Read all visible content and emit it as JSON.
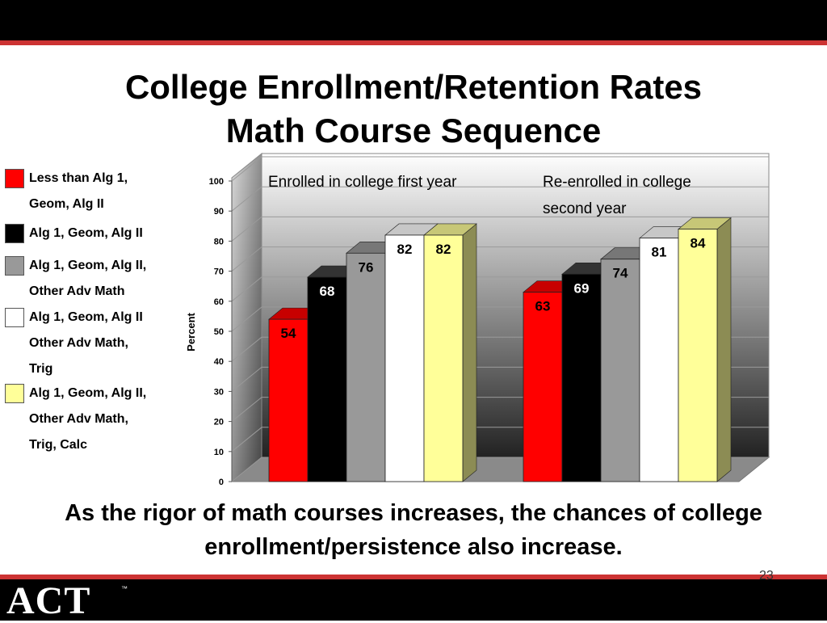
{
  "title_line1": "College Enrollment/Retention Rates",
  "title_line2": "Math Course Sequence",
  "caption": "As the rigor of math courses increases, the chances of college enrollment/persistence also increase.",
  "page_number": "23",
  "logo_text": "ACT",
  "logo_tm": "™",
  "legend": [
    {
      "label": "Less than Alg 1,\nGeom, Alg II",
      "color": "#ff0000"
    },
    {
      "label": "Alg 1, Geom, Alg II",
      "color": "#000000"
    },
    {
      "label": "Alg 1, Geom, Alg II,\nOther Adv Math",
      "color": "#999999"
    },
    {
      "label": "Alg 1, Geom, Alg II\nOther Adv Math,\nTrig",
      "color": "#ffffff"
    },
    {
      "label": "Alg 1, Geom, Alg II,\nOther Adv Math,\nTrig, Calc",
      "color": "#ffff99"
    }
  ],
  "chart_data": {
    "type": "bar",
    "categories": [
      "Enrolled in college first year",
      "Re-enrolled in college second year"
    ],
    "series": [
      {
        "name": "Less than Alg 1, Geom, Alg II",
        "values": [
          54,
          63
        ],
        "color": "#ff0000",
        "label_color": "#000000"
      },
      {
        "name": "Alg 1, Geom, Alg II",
        "values": [
          68,
          69
        ],
        "color": "#000000",
        "label_color": "#ffffff"
      },
      {
        "name": "Alg 1, Geom, Alg II, Other Adv Math",
        "values": [
          76,
          74
        ],
        "color": "#999999",
        "label_color": "#000000"
      },
      {
        "name": "Alg 1, Geom, Alg II Other Adv Math, Trig",
        "values": [
          82,
          81
        ],
        "color": "#ffffff",
        "label_color": "#000000"
      },
      {
        "name": "Alg 1, Geom, Alg II, Other Adv Math, Trig, Calc",
        "values": [
          82,
          84
        ],
        "color": "#ffff99",
        "label_color": "#000000"
      }
    ],
    "ylabel": "Percent",
    "ylim": [
      0,
      100
    ],
    "yticks": [
      0,
      10,
      20,
      30,
      40,
      50,
      60,
      70,
      80,
      90,
      100
    ],
    "grid": true,
    "legend_position": "left"
  }
}
